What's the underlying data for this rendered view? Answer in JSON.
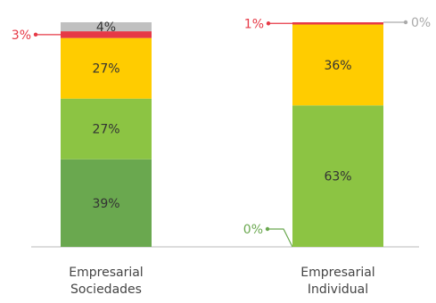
{
  "chart_data": {
    "type": "bar",
    "stacked": true,
    "categories": [
      "Empresarial Sociedades",
      "Empresarial Individual"
    ],
    "category_label_lines": [
      [
        "Empresarial",
        "Sociedades"
      ],
      [
        "Empresarial",
        "Individual"
      ]
    ],
    "ylim": [
      0,
      100
    ],
    "grid": false,
    "legend": "none",
    "stacks": [
      {
        "category": "Empresarial Sociedades",
        "segments": [
          {
            "value": 39,
            "label": "39%",
            "color": "#6aa84f",
            "label_position": "inside",
            "label_color": "#333333"
          },
          {
            "value": 27,
            "label": "27%",
            "color": "#8cc443",
            "label_position": "inside",
            "label_color": "#333333"
          },
          {
            "value": 27,
            "label": "27%",
            "color": "#ffcc00",
            "label_position": "inside",
            "label_color": "#333333"
          },
          {
            "value": 3,
            "label": "3%",
            "color": "#e63946",
            "label_position": "outside-left",
            "label_color": "#e63946"
          },
          {
            "value": 4,
            "label": "4%",
            "color": "#c0c0c0",
            "label_position": "inside",
            "label_color": "#333333"
          }
        ]
      },
      {
        "category": "Empresarial Individual",
        "segments": [
          {
            "value": 0,
            "label": "0%",
            "color": "#6aa84f",
            "label_position": "outside-left-bottom",
            "label_color": "#6aa84f"
          },
          {
            "value": 63,
            "label": "63%",
            "color": "#8cc443",
            "label_position": "inside",
            "label_color": "#333333"
          },
          {
            "value": 36,
            "label": "36%",
            "color": "#ffcc00",
            "label_position": "inside",
            "label_color": "#333333"
          },
          {
            "value": 1,
            "label": "1%",
            "color": "#e63946",
            "label_position": "outside-left",
            "label_color": "#e63946"
          },
          {
            "value": 0,
            "label": "0%",
            "color": "#c0c0c0",
            "label_position": "outside-right",
            "label_color": "#aaaaaa"
          }
        ]
      }
    ],
    "colors": {
      "baseline": "#d0d0d0",
      "category_label": "#444444"
    }
  }
}
